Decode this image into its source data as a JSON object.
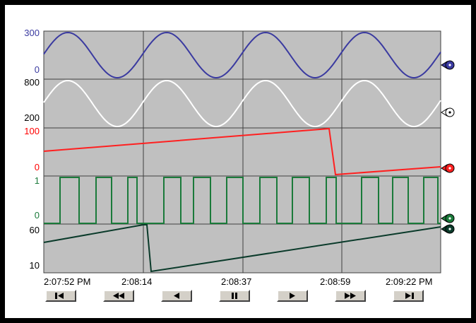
{
  "colors": {
    "background": "#ffffff",
    "plot_background": "#c0c0c0",
    "grid": "#404040",
    "button_face": "#d4d0c8"
  },
  "pens": [
    {
      "id": "pen-1",
      "color": "#3a3aa0",
      "label_color": "#3a3aa0",
      "max_label": "300",
      "min_label": "0",
      "max": 300,
      "min": 0,
      "marker": "blue-pen-marker-icon"
    },
    {
      "id": "pen-2",
      "color": "#ffffff",
      "label_color": "#000000",
      "max_label": "800",
      "min_label": "200",
      "max": 800,
      "min": 200,
      "marker": "white-pen-marker-icon"
    },
    {
      "id": "pen-3",
      "color": "#ff2020",
      "label_color": "#ff0000",
      "max_label": "100",
      "min_label": "0",
      "max": 100,
      "min": 0,
      "marker": "red-pen-marker-icon"
    },
    {
      "id": "pen-4",
      "color": "#1a7a3a",
      "label_color": "#1a7a3a",
      "max_label": "1",
      "min_label": "0",
      "max": 1,
      "min": 0,
      "marker": "green-pen-marker-icon"
    },
    {
      "id": "pen-5",
      "color": "#0a3a2a",
      "label_color": "#000000",
      "max_label": "60",
      "min_label": "10",
      "max": 60,
      "min": 10,
      "marker": "dark-pen-marker-icon"
    }
  ],
  "time_axis": [
    "2:07:52 PM",
    "2:08:14",
    "2:08:37",
    "2:08:59",
    "2:09:22 PM"
  ],
  "controls": [
    {
      "name": "first-button",
      "icon": "skip-to-start-icon"
    },
    {
      "name": "fast-rewind-button",
      "icon": "fast-rewind-icon"
    },
    {
      "name": "step-back-button",
      "icon": "step-back-icon"
    },
    {
      "name": "pause-button",
      "icon": "pause-icon"
    },
    {
      "name": "play-button",
      "icon": "play-icon"
    },
    {
      "name": "fast-forward-button",
      "icon": "fast-forward-icon"
    },
    {
      "name": "last-button",
      "icon": "skip-to-end-icon"
    }
  ]
}
